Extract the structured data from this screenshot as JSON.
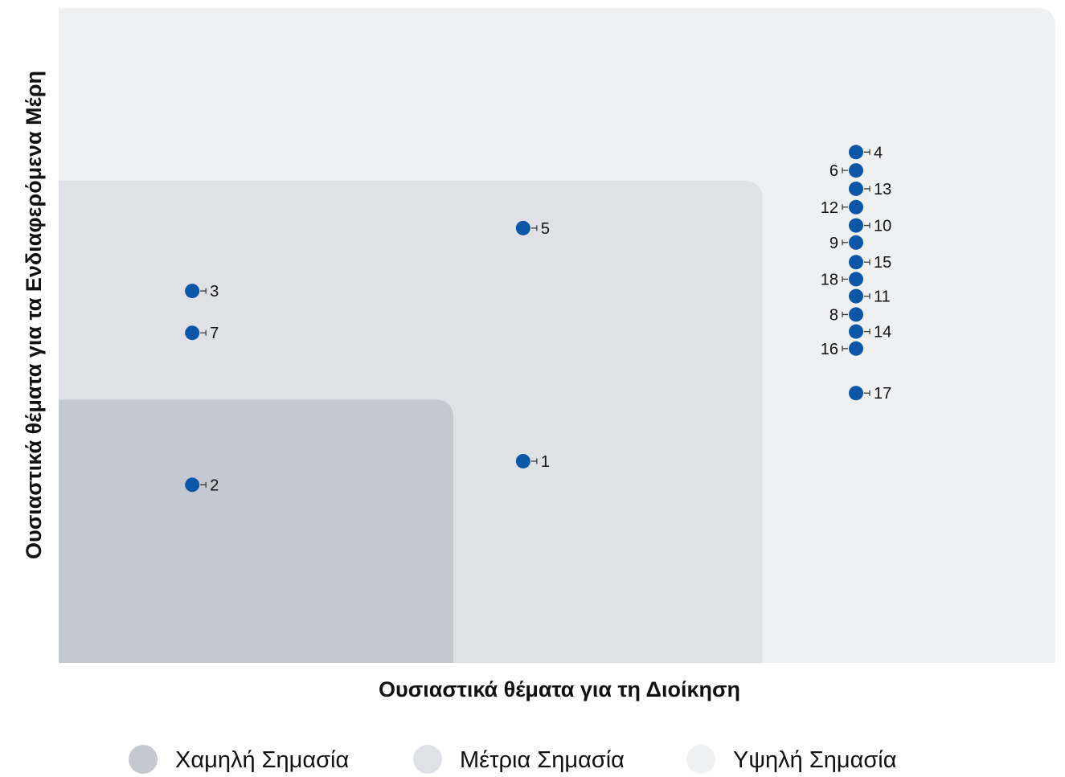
{
  "chart_data": {
    "type": "scatter",
    "xlabel": "Ουσιαστικά θέματα για τη Διοίκηση",
    "ylabel": "Ουσιαστικά θέματα για τα Ενδιαφερόμενα Μέρη",
    "xlim": [
      0,
      5
    ],
    "ylim": [
      0,
      5
    ],
    "grid": false,
    "legend_position": "bottom",
    "point_color": "#0b56a6",
    "zones": [
      {
        "label": "Χαμηλή Σημασία",
        "color": "#c4c8d1",
        "x_max": 1.98,
        "y_max": 2.01
      },
      {
        "label": "Μέτρια Σημασία",
        "color": "#dfe1e6",
        "x_max": 3.53,
        "y_max": 3.68
      },
      {
        "label": "Υψηλή Σημασία",
        "color": "#eff0f2",
        "x_max": 5,
        "y_max": 5
      }
    ],
    "points": [
      {
        "label": "1",
        "x": 2.33,
        "y": 1.54,
        "label_side": "right"
      },
      {
        "label": "2",
        "x": 0.67,
        "y": 1.36,
        "label_side": "right"
      },
      {
        "label": "3",
        "x": 0.67,
        "y": 2.84,
        "label_side": "right"
      },
      {
        "label": "4",
        "x": 4.0,
        "y": 3.9,
        "label_side": "right"
      },
      {
        "label": "5",
        "x": 2.33,
        "y": 3.32,
        "label_side": "right"
      },
      {
        "label": "6",
        "x": 4.0,
        "y": 3.76,
        "label_side": "left"
      },
      {
        "label": "7",
        "x": 0.67,
        "y": 2.52,
        "label_side": "right"
      },
      {
        "label": "8",
        "x": 4.0,
        "y": 2.66,
        "label_side": "left"
      },
      {
        "label": "9",
        "x": 4.0,
        "y": 3.21,
        "label_side": "left"
      },
      {
        "label": "10",
        "x": 4.0,
        "y": 3.34,
        "label_side": "right"
      },
      {
        "label": "11",
        "x": 4.0,
        "y": 2.8,
        "label_side": "right"
      },
      {
        "label": "12",
        "x": 4.0,
        "y": 3.48,
        "label_side": "left"
      },
      {
        "label": "13",
        "x": 4.0,
        "y": 3.62,
        "label_side": "right"
      },
      {
        "label": "14",
        "x": 4.0,
        "y": 2.53,
        "label_side": "right"
      },
      {
        "label": "15",
        "x": 4.0,
        "y": 3.06,
        "label_side": "right"
      },
      {
        "label": "16",
        "x": 4.0,
        "y": 2.4,
        "label_side": "left"
      },
      {
        "label": "17",
        "x": 4.0,
        "y": 2.06,
        "label_side": "right"
      },
      {
        "label": "18",
        "x": 4.0,
        "y": 2.93,
        "label_side": "left"
      }
    ]
  }
}
